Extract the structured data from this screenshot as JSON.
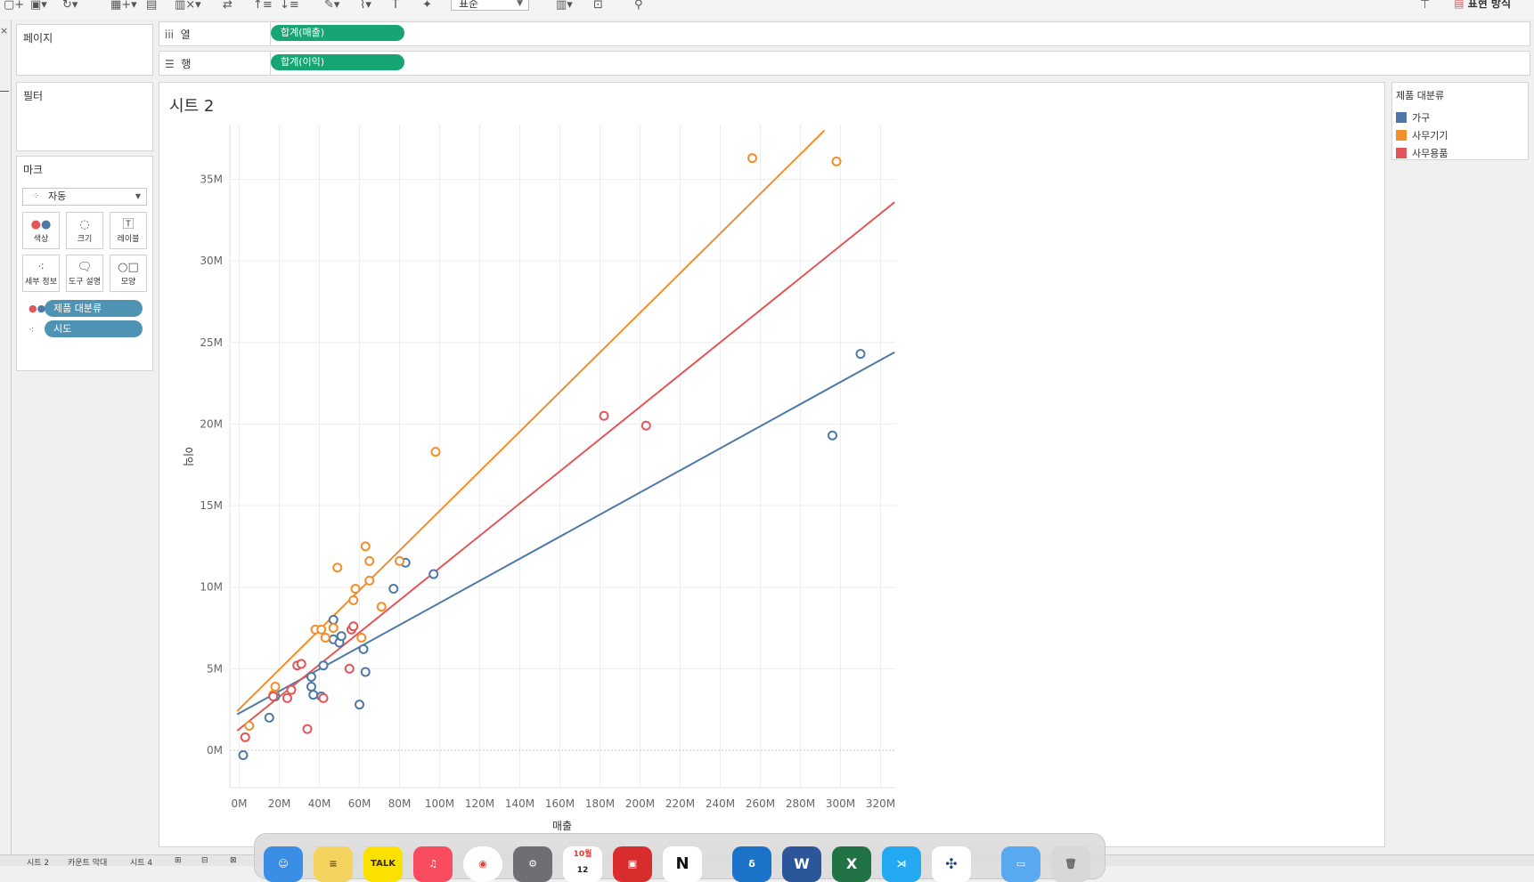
{
  "toolbar": {
    "format_select": "표준",
    "show_me_label": "표현 방식"
  },
  "shelves": {
    "columns_label": "열",
    "rows_label": "행",
    "columns_pill": "합계(매출)",
    "rows_pill": "합계(이익)"
  },
  "cards": {
    "pages_title": "페이지",
    "filters_title": "필터",
    "marks_title": "마크",
    "mark_type": "자동",
    "mark_buttons": [
      "색상",
      "크기",
      "레이블",
      "세부 정보",
      "도구 설명",
      "모양"
    ],
    "color_pill": "제품 대분류",
    "detail_pill": "시도"
  },
  "sheet": {
    "title": "시트 2"
  },
  "legend": {
    "title": "제품 대분류",
    "items": [
      {
        "label": "가구",
        "color": "#4e79a7"
      },
      {
        "label": "사무기기",
        "color": "#f28e2b"
      },
      {
        "label": "사무용품",
        "color": "#e15759"
      }
    ]
  },
  "chart_data": {
    "type": "scatter",
    "xlabel": "매출",
    "ylabel": "이익",
    "x_unit": "M",
    "y_unit": "M",
    "xlim": [
      -5,
      327
    ],
    "ylim": [
      -2.5,
      38
    ],
    "x_ticks": [
      "0M",
      "20M",
      "40M",
      "60M",
      "80M",
      "100M",
      "120M",
      "140M",
      "160M",
      "180M",
      "200M",
      "220M",
      "240M",
      "260M",
      "280M",
      "300M",
      "320M"
    ],
    "y_ticks": [
      "0M",
      "5M",
      "10M",
      "15M",
      "20M",
      "25M",
      "30M",
      "35M"
    ],
    "series": [
      {
        "name": "가구",
        "color": "#4e79a7",
        "trend": [
          [
            -1,
            2.2
          ],
          [
            327,
            24.4
          ]
        ],
        "points": [
          [
            2,
            -0.3
          ],
          [
            15,
            2
          ],
          [
            18,
            3.3
          ],
          [
            36,
            4.5
          ],
          [
            36,
            3.9
          ],
          [
            37,
            3.4
          ],
          [
            41,
            3.3
          ],
          [
            42,
            5.2
          ],
          [
            47,
            6.8
          ],
          [
            47,
            8
          ],
          [
            50,
            6.6
          ],
          [
            51,
            7
          ],
          [
            60,
            2.8
          ],
          [
            62,
            6.2
          ],
          [
            63,
            4.8
          ],
          [
            77,
            9.9
          ],
          [
            83,
            11.5
          ],
          [
            97,
            10.8
          ],
          [
            296,
            19.3
          ],
          [
            310,
            24.3
          ]
        ]
      },
      {
        "name": "사무기기",
        "color": "#f28e2b",
        "trend": [
          [
            -1,
            2.4
          ],
          [
            292,
            38
          ]
        ],
        "points": [
          [
            5,
            1.5
          ],
          [
            17,
            3.4
          ],
          [
            18,
            3.9
          ],
          [
            38,
            7.4
          ],
          [
            41,
            7.4
          ],
          [
            43,
            6.9
          ],
          [
            47,
            7.5
          ],
          [
            49,
            11.2
          ],
          [
            57,
            9.2
          ],
          [
            58,
            9.9
          ],
          [
            61,
            6.9
          ],
          [
            63,
            12.5
          ],
          [
            65,
            10.4
          ],
          [
            65,
            11.6
          ],
          [
            71,
            8.8
          ],
          [
            80,
            11.6
          ],
          [
            98,
            18.3
          ],
          [
            256,
            36.3
          ],
          [
            298,
            36.1
          ]
        ]
      },
      {
        "name": "사무용품",
        "color": "#e15759",
        "trend": [
          [
            -1,
            1.2
          ],
          [
            327,
            33.6
          ]
        ],
        "points": [
          [
            3,
            0.8
          ],
          [
            17,
            3.3
          ],
          [
            24,
            3.2
          ],
          [
            26,
            3.7
          ],
          [
            29,
            5.2
          ],
          [
            31,
            5.3
          ],
          [
            34,
            1.3
          ],
          [
            42,
            3.2
          ],
          [
            55,
            5
          ],
          [
            56,
            7.4
          ],
          [
            57,
            7.6
          ],
          [
            182,
            20.5
          ],
          [
            203,
            19.9
          ]
        ]
      }
    ],
    "grid": true
  },
  "dock": {
    "items": [
      "Finder",
      "메모",
      "TALK",
      "Music",
      "Chrome",
      "설정",
      "10월 12",
      "Photo Booth",
      "N",
      "Dict",
      "W",
      "X",
      "VS",
      "Tableau",
      "Files",
      "Trash"
    ]
  },
  "bottom_tabs": [
    "시트 2",
    "카운트 막대",
    "시트 4"
  ]
}
